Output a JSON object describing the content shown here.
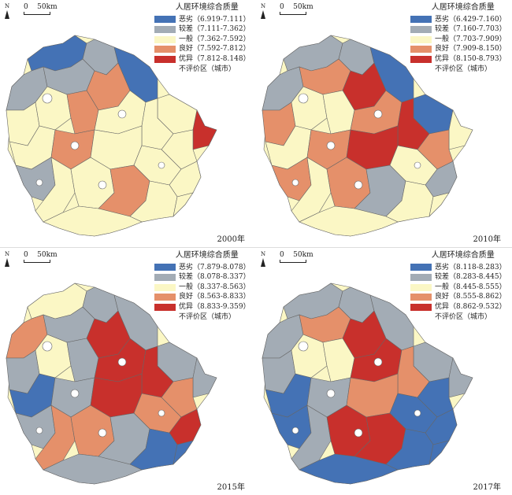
{
  "north_label": "N",
  "scale_label": "0    50km",
  "colors": {
    "poor": "#4472b5",
    "fair": "#a3acb5",
    "average": "#fbf7c5",
    "good": "#e5906a",
    "excellent": "#c8302c",
    "outline": "#666666"
  },
  "panels": [
    {
      "year": "2000年",
      "legend_title": "人居环境综合质量",
      "classes": [
        {
          "label": "恶劣（6.919-7.111）",
          "color": "#4472b5"
        },
        {
          "label": "较差（7.111-7.362）",
          "color": "#a3acb5"
        },
        {
          "label": "一般（7.362-7.592）",
          "color": "#fbf7c5"
        },
        {
          "label": "良好（7.592-7.812）",
          "color": "#e5906a"
        },
        {
          "label": "优异（7.812-8.148）",
          "color": "#c8302c"
        }
      ],
      "unassessed": "不评价区（城市）"
    },
    {
      "year": "2010年",
      "legend_title": "人居环境综合质量",
      "classes": [
        {
          "label": "恶劣（6.429-7.160）",
          "color": "#4472b5"
        },
        {
          "label": "较差（7.160-7.703）",
          "color": "#a3acb5"
        },
        {
          "label": "一般（7.703-7.909）",
          "color": "#fbf7c5"
        },
        {
          "label": "良好（7.909-8.150）",
          "color": "#e5906a"
        },
        {
          "label": "优异（8.150-8.793）",
          "color": "#c8302c"
        }
      ],
      "unassessed": "不评价区（城市）"
    },
    {
      "year": "2015年",
      "legend_title": "人居环境综合质量",
      "classes": [
        {
          "label": "恶劣（7.879-8.078）",
          "color": "#4472b5"
        },
        {
          "label": "较差（8.078-8.337）",
          "color": "#a3acb5"
        },
        {
          "label": "一般（8.337-8.563）",
          "color": "#fbf7c5"
        },
        {
          "label": "良好（8.563-8.833）",
          "color": "#e5906a"
        },
        {
          "label": "优异（8.833-9.359）",
          "color": "#c8302c"
        }
      ],
      "unassessed": "不评价区（城市）"
    },
    {
      "year": "2017年",
      "legend_title": "人居环境综合质量",
      "classes": [
        {
          "label": "恶劣（8.118-8.283）",
          "color": "#4472b5"
        },
        {
          "label": "较差（8.283-8.445）",
          "color": "#a3acb5"
        },
        {
          "label": "一般（8.445-8.555）",
          "color": "#fbf7c5"
        },
        {
          "label": "良好（8.555-8.862）",
          "color": "#e5906a"
        },
        {
          "label": "优异（8.862-9.532）",
          "color": "#c8302c"
        }
      ],
      "unassessed": "不评价区（城市）"
    }
  ]
}
